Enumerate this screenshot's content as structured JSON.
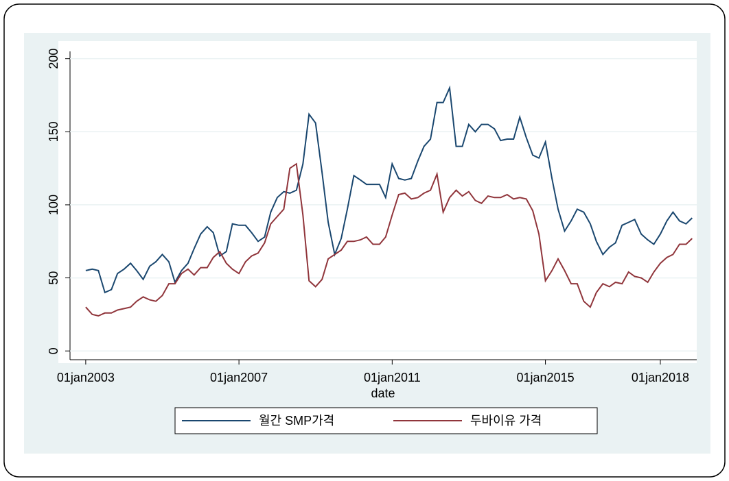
{
  "chart_data": {
    "type": "line",
    "x_label": "date",
    "x": [
      2003,
      2003.17,
      2003.33,
      2003.5,
      2003.67,
      2003.83,
      2004,
      2004.17,
      2004.33,
      2004.5,
      2004.67,
      2004.83,
      2005,
      2005.17,
      2005.33,
      2005.5,
      2005.67,
      2005.83,
      2006,
      2006.17,
      2006.33,
      2006.5,
      2006.67,
      2006.83,
      2007,
      2007.17,
      2007.33,
      2007.5,
      2007.67,
      2007.83,
      2008,
      2008.17,
      2008.33,
      2008.5,
      2008.67,
      2008.83,
      2009,
      2009.17,
      2009.33,
      2009.5,
      2009.67,
      2009.83,
      2010,
      2010.17,
      2010.33,
      2010.5,
      2010.67,
      2010.83,
      2011,
      2011.17,
      2011.33,
      2011.5,
      2011.67,
      2011.83,
      2012,
      2012.17,
      2012.33,
      2012.5,
      2012.67,
      2012.83,
      2013,
      2013.17,
      2013.33,
      2013.5,
      2013.67,
      2013.83,
      2014,
      2014.17,
      2014.33,
      2014.5,
      2014.67,
      2014.83,
      2015,
      2015.17,
      2015.33,
      2015.5,
      2015.67,
      2015.83,
      2016,
      2016.17,
      2016.33,
      2016.5,
      2016.67,
      2016.83,
      2017,
      2017.17,
      2017.33,
      2017.5,
      2017.67,
      2017.83,
      2018,
      2018.17,
      2018.33,
      2018.5,
      2018.67,
      2018.83
    ],
    "series": [
      {
        "name": "월간 SMP가격",
        "color": "#1a476f",
        "values": [
          55,
          56,
          55,
          40,
          42,
          53,
          56,
          60,
          55,
          49,
          58,
          61,
          66,
          61,
          47,
          55,
          60,
          70,
          80,
          85,
          81,
          65,
          68,
          87,
          86,
          86,
          81,
          75,
          78,
          95,
          105,
          109,
          108,
          110,
          128,
          162,
          156,
          122,
          88,
          66,
          77,
          97,
          120,
          117,
          114,
          114,
          114,
          105,
          128,
          118,
          117,
          118,
          130,
          140,
          145,
          170,
          170,
          180,
          140,
          140,
          155,
          150,
          155,
          155,
          152,
          144,
          145,
          145,
          160,
          146,
          134,
          132,
          143,
          118,
          97,
          82,
          89,
          97,
          95,
          87,
          75,
          66,
          71,
          74,
          86,
          88,
          90,
          80,
          76,
          73,
          80,
          89,
          95,
          89,
          87,
          91
        ]
      },
      {
        "name": "두바이유 가격",
        "color": "#90353b",
        "values": [
          30,
          25,
          24,
          26,
          26,
          28,
          29,
          30,
          34,
          37,
          35,
          34,
          38,
          46,
          46,
          53,
          56,
          52,
          57,
          57,
          64,
          68,
          60,
          56,
          53,
          61,
          65,
          67,
          74,
          87,
          92,
          97,
          125,
          128,
          93,
          48,
          44,
          49,
          63,
          66,
          69,
          75,
          75,
          76,
          78,
          73,
          73,
          78,
          93,
          107,
          108,
          104,
          105,
          108,
          110,
          121,
          95,
          105,
          110,
          106,
          109,
          103,
          101,
          106,
          105,
          105,
          107,
          104,
          105,
          104,
          96,
          80,
          48,
          55,
          63,
          55,
          46,
          46,
          34,
          30,
          40,
          46,
          44,
          47,
          46,
          54,
          51,
          50,
          47,
          54,
          60,
          64,
          66,
          73,
          73,
          77
        ]
      }
    ],
    "xlim": [
      2002.59,
      2018.95
    ],
    "xticks": [
      {
        "value": 2003,
        "label": "01jan2003"
      },
      {
        "value": 2007,
        "label": "01jan2007"
      },
      {
        "value": 2011,
        "label": "01jan2011"
      },
      {
        "value": 2015,
        "label": "01jan2015"
      },
      {
        "value": 2018,
        "label": "01jan2018"
      }
    ],
    "ylim": [
      -6,
      205
    ],
    "yticks": [
      0,
      50,
      100,
      150,
      200
    ],
    "grid": true
  }
}
